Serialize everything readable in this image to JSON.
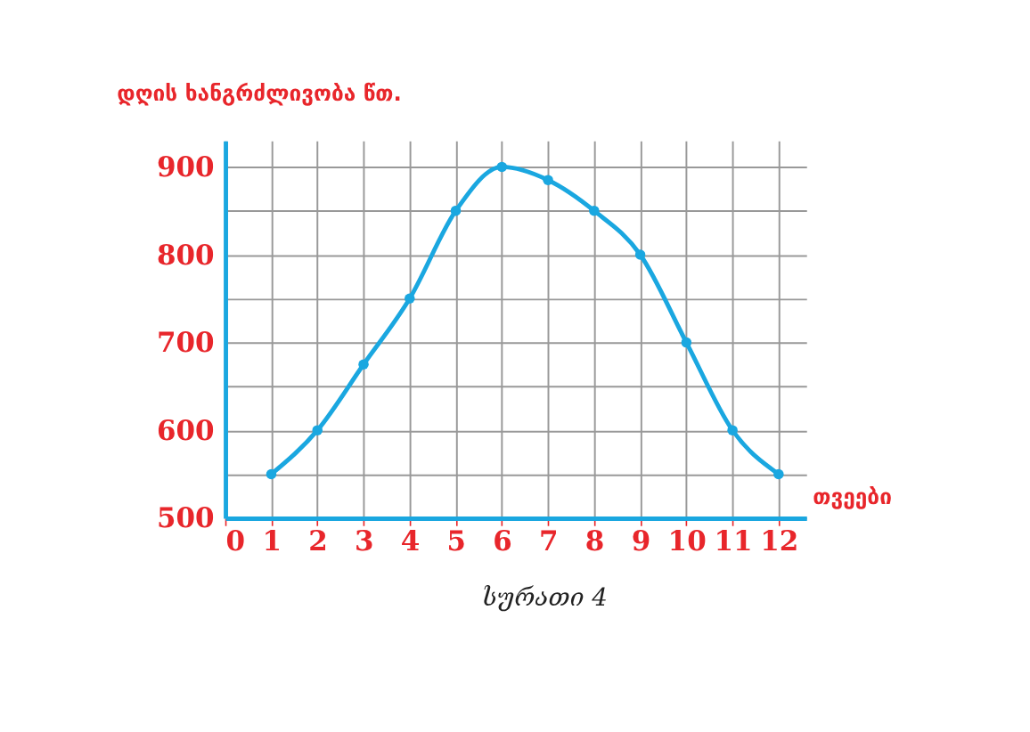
{
  "chart_data": {
    "type": "line",
    "ylabel": "დღის ხანგრძლივობა წთ.",
    "xlabel": "თვეები",
    "annotations": [
      "სურათი 4"
    ],
    "x": [
      1,
      2,
      3,
      4,
      5,
      6,
      7,
      8,
      9,
      10,
      11,
      12
    ],
    "series": [
      {
        "color": "#1aa7e0",
        "values": [
          550,
          600,
          675,
          750,
          850,
          900,
          885,
          850,
          800,
          700,
          600,
          550
        ]
      }
    ],
    "xlim": [
      0,
      12.6
    ],
    "xticks": [
      0,
      1,
      2,
      3,
      4,
      5,
      6,
      7,
      8,
      9,
      10,
      11,
      12
    ],
    "ylim": [
      500,
      930
    ],
    "yticks": [
      500,
      {
        "value": 550,
        "label": null
      },
      600,
      {
        "value": 650,
        "label": null
      },
      700,
      {
        "value": 750,
        "label": null
      },
      800,
      {
        "value": 850,
        "label": null
      },
      900
    ],
    "grid": true,
    "marker": "circle",
    "line_style": "solid",
    "legend": false
  }
}
